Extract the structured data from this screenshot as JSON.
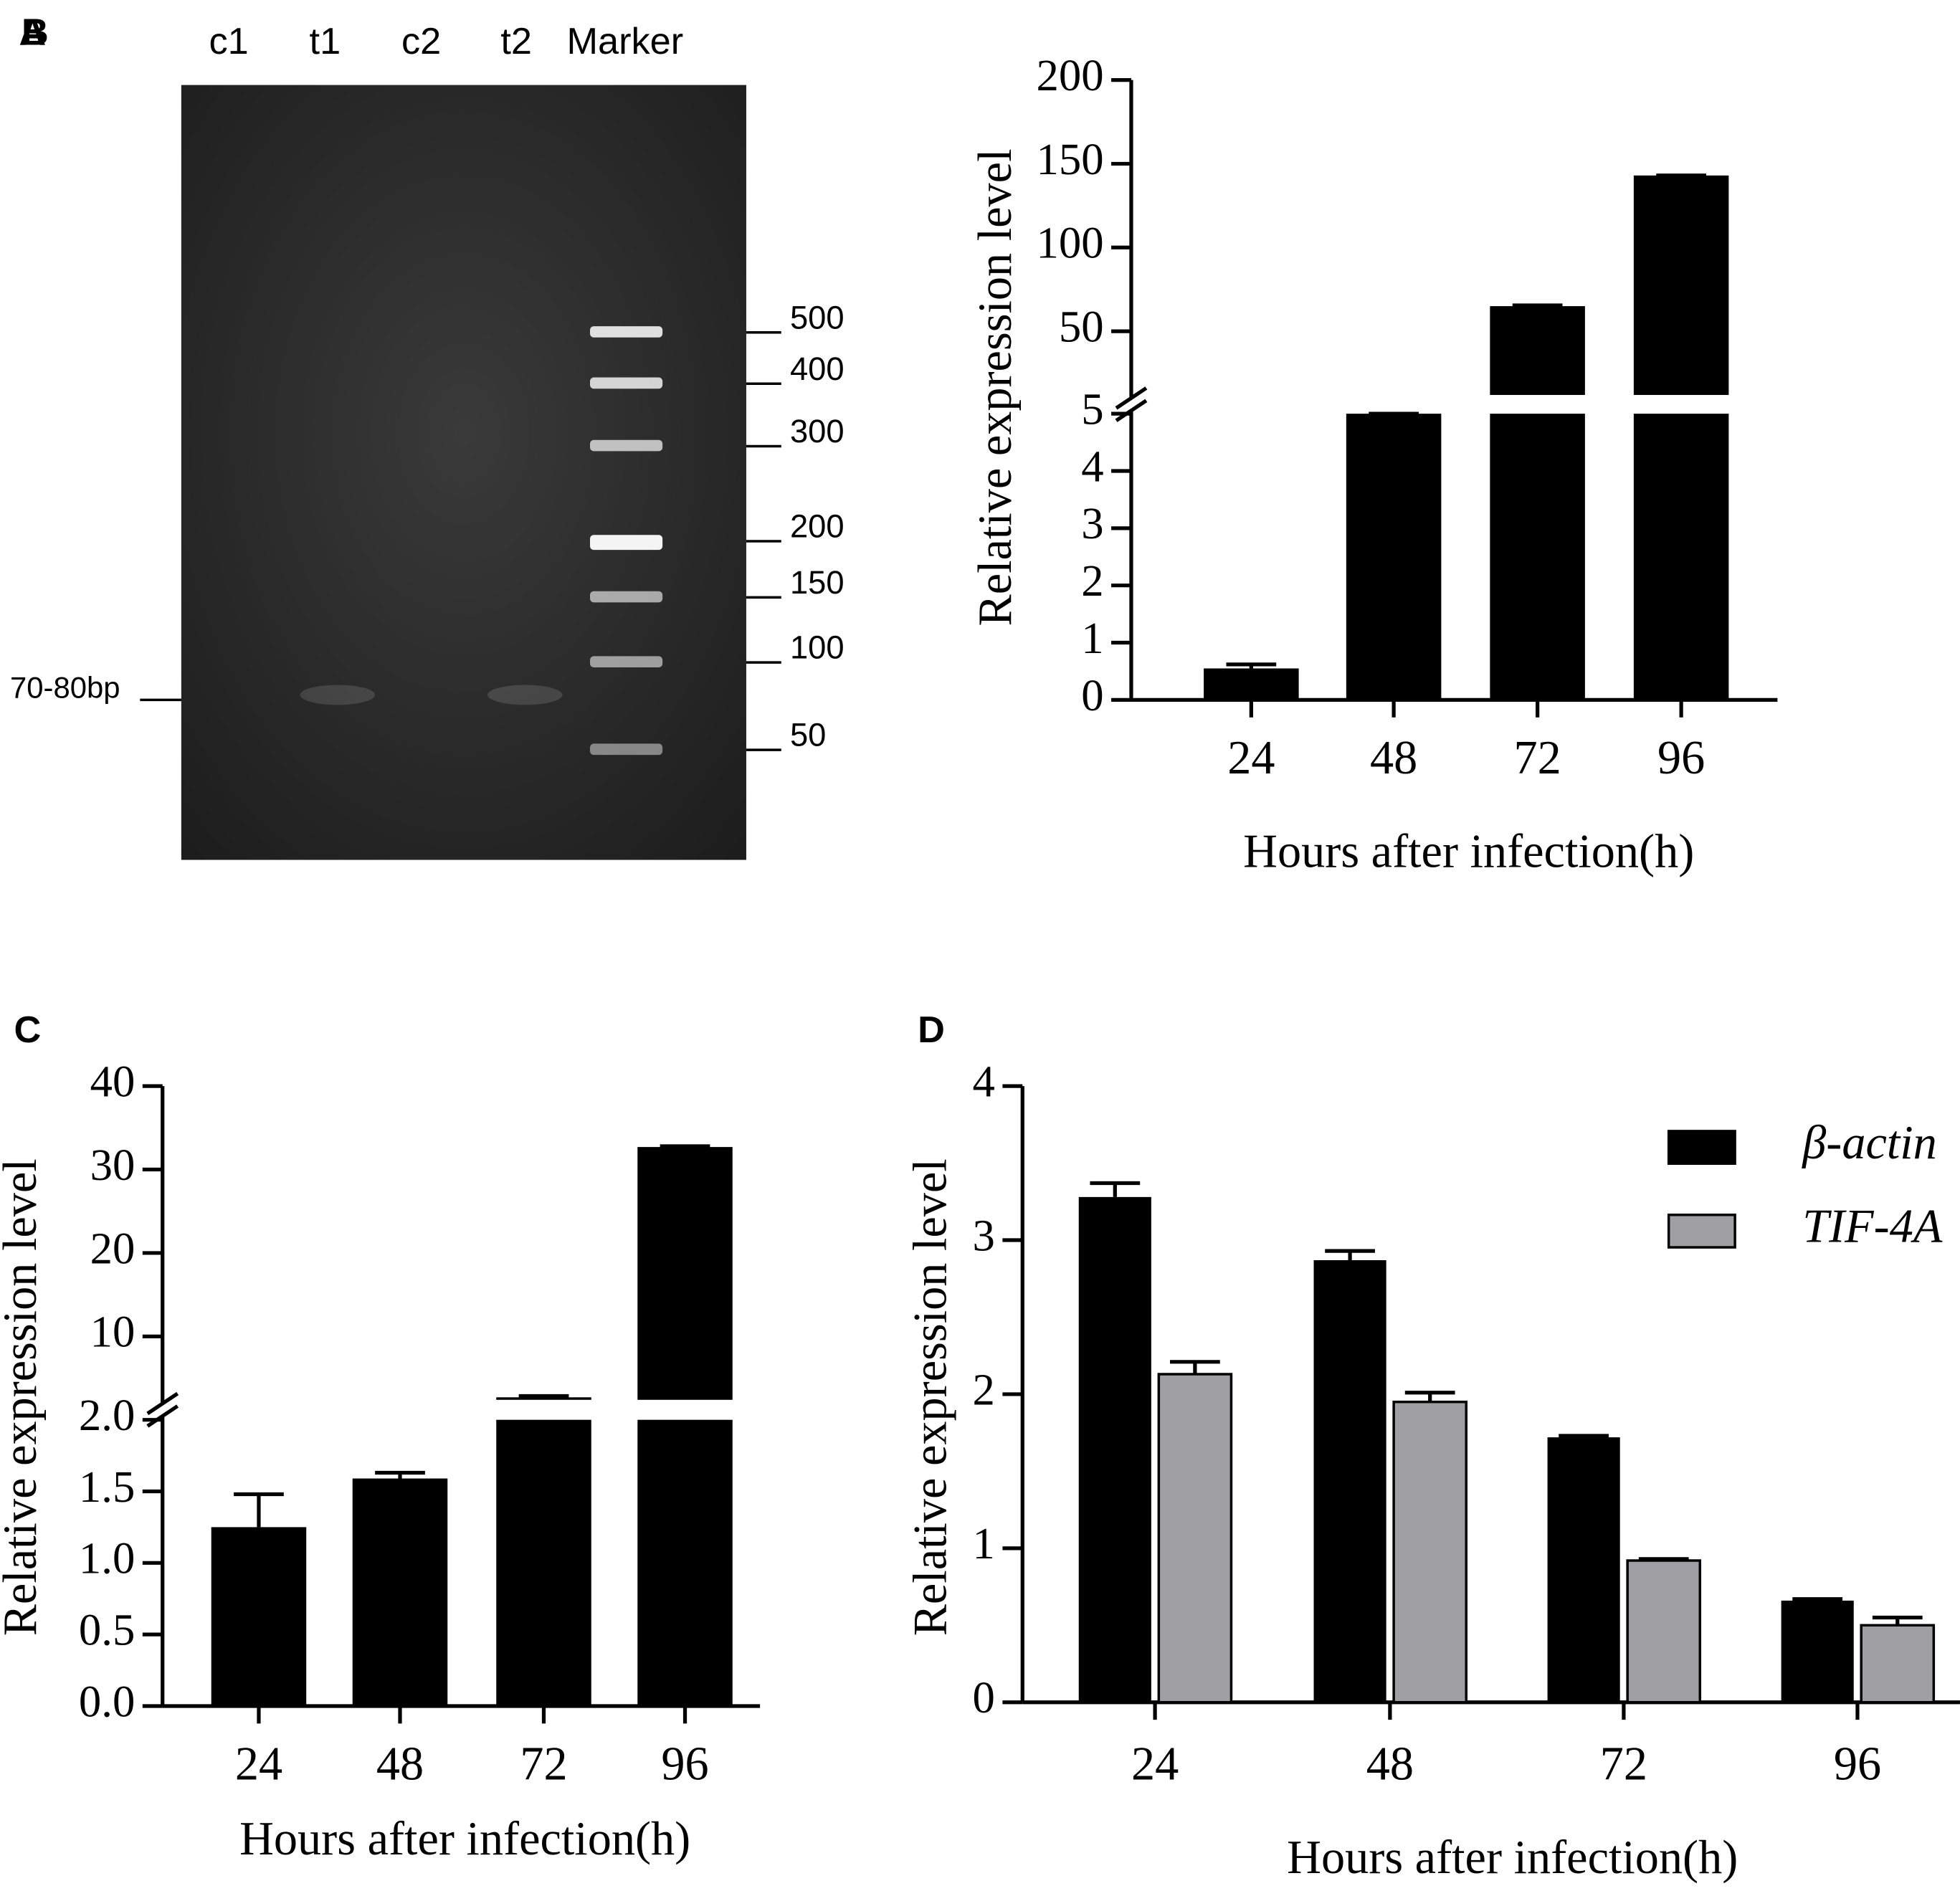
{
  "chart_data": [
    {
      "type": "gel",
      "panel": "A",
      "lanes": [
        "c1",
        "t1",
        "c2",
        "t2",
        "Marker"
      ],
      "marker_labels": [
        500,
        400,
        300,
        200,
        150,
        100,
        50
      ],
      "band_label": "70-80bp"
    },
    {
      "type": "bar",
      "panel": "B",
      "categories": [
        "24",
        "48",
        "72",
        "96"
      ],
      "values": [
        0.55,
        5,
        65,
        143
      ],
      "errors": [
        0.07,
        0,
        0.5,
        0
      ],
      "color": "#000000",
      "xlabel": "Hours after infection(h)",
      "ylabel": "Relative expression level",
      "ylim": [
        0,
        5
      ],
      "yticks": [
        0,
        1,
        2,
        3,
        4,
        5
      ],
      "break": {
        "ylim": [
          12,
          200
        ],
        "yticks": [
          50,
          100,
          150,
          200
        ]
      }
    },
    {
      "type": "bar",
      "panel": "C",
      "categories": [
        "24",
        "48",
        "72",
        "96"
      ],
      "values": [
        1.25,
        1.59,
        2.7,
        32.7
      ],
      "errors": [
        0.23,
        0.04,
        0.15,
        0.1
      ],
      "color": "#000000",
      "xlabel": "Hours after infection(h)",
      "ylabel": "Relative expression level",
      "ylim": [
        0,
        2
      ],
      "yticks": [
        {
          "value": 0,
          "label": "0.0"
        },
        {
          "value": 0.5,
          "label": "0.5"
        },
        {
          "value": 1,
          "label": "1.0"
        },
        {
          "value": 1.5,
          "label": "1.5"
        },
        {
          "value": 2,
          "label": "2.0"
        }
      ],
      "break": {
        "ylim": [
          2.4,
          40
        ],
        "yticks": [
          10,
          20,
          30,
          40
        ]
      }
    },
    {
      "type": "bar",
      "panel": "D",
      "categories": [
        "24",
        "48",
        "72",
        "96"
      ],
      "series": [
        {
          "name": "β-actin",
          "color": "#000000",
          "values": [
            3.28,
            2.87,
            1.72,
            0.66
          ],
          "errors": [
            0.09,
            0.06,
            0.01,
            0.01
          ]
        },
        {
          "name": "TIF-4A",
          "color": "#a0a0a4",
          "values": [
            2.13,
            1.95,
            0.92,
            0.5
          ],
          "errors": [
            0.08,
            0.06,
            0.01,
            0.05
          ]
        }
      ],
      "xlabel": "Hours after infection(h)",
      "ylabel": "Relative expression level",
      "ylim": [
        0,
        4
      ],
      "yticks": [
        0,
        1,
        2,
        3,
        4
      ],
      "legend": "top-right"
    }
  ]
}
